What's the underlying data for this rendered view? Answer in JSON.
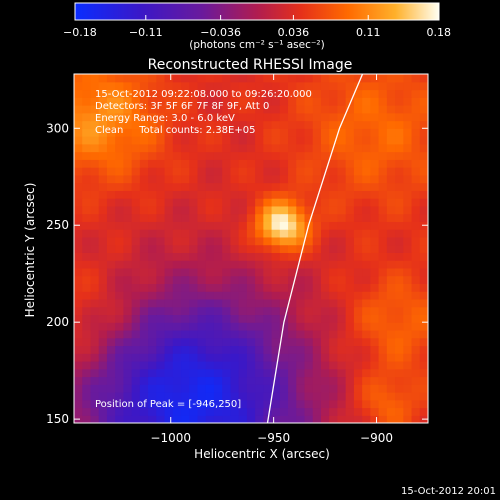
{
  "chart_data": {
    "type": "heatmap",
    "title": "Reconstructed RHESSI Image",
    "xlabel": "Heliocentric X (arcsec)",
    "ylabel": "Heliocentric Y (arcsec)",
    "x_ticks": [
      -1000,
      -950,
      -900
    ],
    "x_tick_labels": [
      "−1000",
      "−950",
      "−900"
    ],
    "y_ticks": [
      150,
      200,
      250,
      300
    ],
    "y_tick_labels": [
      "150",
      "200",
      "250",
      "300"
    ],
    "xlim": [
      -1047,
      -875
    ],
    "ylim": [
      148,
      328
    ],
    "colorbar": {
      "ticks": [
        -0.18,
        -0.11,
        -0.036,
        0.036,
        0.11,
        0.18
      ],
      "tick_labels": [
        "−0.18",
        "−0.11",
        "−0.036",
        "0.036",
        "0.11",
        "0.18"
      ],
      "unit_label": "(photons cm⁻² s⁻¹ asec⁻²)",
      "range": [
        -0.18,
        0.18
      ]
    },
    "annotations": [
      "15-Oct-2012 09:22:08.000 to 09:26:20.000",
      "Detectors: 3F 5F 6F 7F 8F 9F, Att 0",
      "Energy Range: 3.0 - 6.0 keV",
      "Clean     Total counts: 2.38E+05"
    ],
    "peak_label": "Position of Peak = [-946,250]",
    "peak": {
      "x": -946,
      "y": 250
    },
    "sources": [
      {
        "x": -946,
        "y": 250,
        "strength": 1.0,
        "sigma": 9
      },
      {
        "x": -1035,
        "y": 305,
        "strength": 0.55,
        "sigma": 22
      },
      {
        "x": -900,
        "y": 300,
        "strength": 0.35,
        "sigma": 28
      },
      {
        "x": -890,
        "y": 200,
        "strength": 0.35,
        "sigma": 18
      },
      {
        "x": -895,
        "y": 158,
        "strength": 0.35,
        "sigma": 12
      },
      {
        "x": -1040,
        "y": 200,
        "strength": 0.28,
        "sigma": 22
      }
    ],
    "dark_region": {
      "x": -990,
      "y": 160,
      "depth": 0.55,
      "sigma": 38
    },
    "limb": [
      {
        "x": -953,
        "y": 148
      },
      {
        "x": -945,
        "y": 200
      },
      {
        "x": -933,
        "y": 250
      },
      {
        "x": -918,
        "y": 300
      },
      {
        "x": -906,
        "y": 330
      }
    ]
  },
  "footer": {
    "timestamp": "15-Oct-2012 20:01"
  }
}
